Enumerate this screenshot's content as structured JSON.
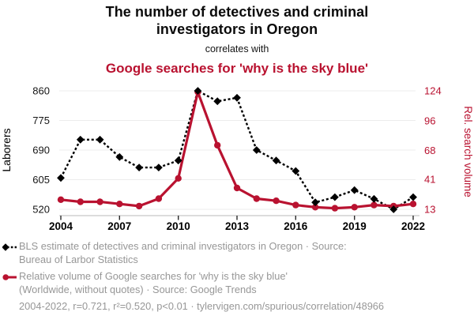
{
  "header": {
    "title_line1": "The number of detectives and criminal",
    "title_line2": "investigators in Oregon",
    "connector": "correlates with",
    "subtitle": "Google searches for 'why is the sky blue'"
  },
  "colors": {
    "accent_red": "#b91230",
    "series_black": "#000000",
    "legend_gray": "#979797",
    "grid_gray": "#ececec",
    "axis_line_gray": "#c6c6c6",
    "tick_mark_dark": "#2a2a2a"
  },
  "chart_data": {
    "type": "line",
    "title": "The number of detectives and criminal investigators in Oregon correlates with Google searches for 'why is the sky blue'",
    "x": [
      2004,
      2005,
      2006,
      2007,
      2008,
      2009,
      2010,
      2011,
      2012,
      2013,
      2014,
      2015,
      2016,
      2017,
      2018,
      2019,
      2020,
      2021,
      2022
    ],
    "x_ticks": [
      2004,
      2007,
      2010,
      2013,
      2016,
      2019,
      2022
    ],
    "series": [
      {
        "name": "BLS estimate of detectives and criminal investigators in Oregon",
        "axis": "left",
        "color": "#000000",
        "line_style": "dashed",
        "marker": "diamond",
        "values": [
          610,
          720,
          720,
          670,
          640,
          640,
          660,
          860,
          830,
          840,
          690,
          660,
          630,
          540,
          555,
          575,
          550,
          520,
          555
        ]
      },
      {
        "name": "Relative volume of Google searches for 'why is the sky blue'",
        "axis": "right",
        "color": "#b91230",
        "line_style": "solid",
        "marker": "circle",
        "values": [
          22,
          20,
          20,
          18,
          16,
          23,
          42,
          123,
          73,
          33,
          23,
          21,
          17,
          15,
          14,
          15,
          17,
          16,
          18
        ]
      }
    ],
    "left_axis": {
      "label": "Laborers",
      "ticks": [
        520,
        605,
        690,
        775,
        860
      ],
      "range": [
        520,
        860
      ]
    },
    "right_axis": {
      "label": "Rel. search volume",
      "ticks": [
        13,
        41,
        68,
        96,
        124
      ],
      "range": [
        13,
        124
      ]
    },
    "grid": true,
    "legend_position": "bottom"
  },
  "legend": {
    "series1_line1": "BLS estimate of detectives and criminal investigators in Oregon · Source:",
    "series1_line2": "Bureau of Larbor Statistics",
    "series2_line1": "Relative volume of Google searches for 'why is the sky blue'",
    "series2_line2": "(Worldwide, without quotes) · Source: Google Trends",
    "footnote": "2004-2022, r=0.721, r²=0.520, p<0.01 · tylervigen.com/spurious/correlation/48966"
  }
}
